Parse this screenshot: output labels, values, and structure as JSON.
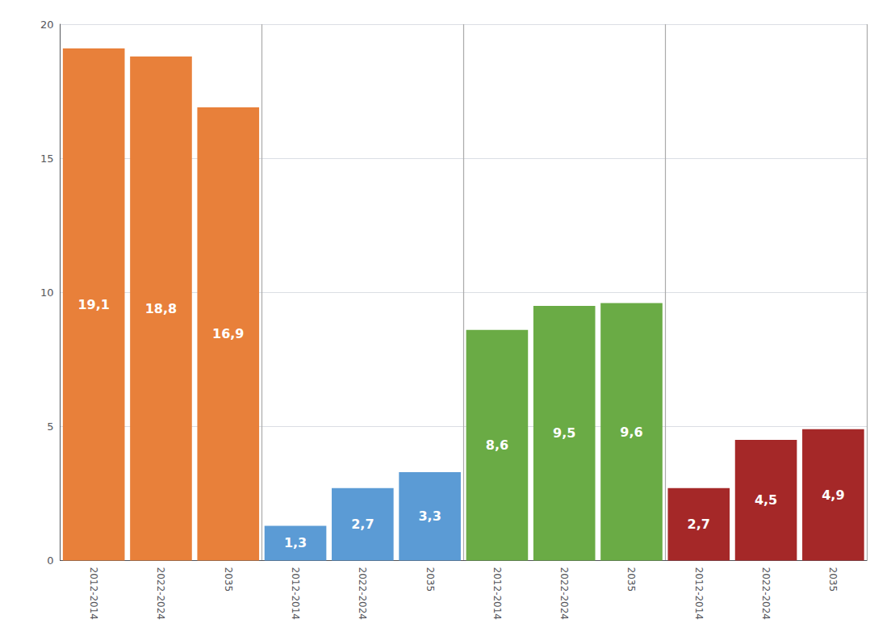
{
  "chart_data": {
    "type": "bar",
    "categories": [
      "2012-2014",
      "2022-2024",
      "2035",
      "2012-2014",
      "2022-2024",
      "2035",
      "2012-2014",
      "2022-2024",
      "2035",
      "2012-2014",
      "2022-2024",
      "2035"
    ],
    "values": [
      19.1,
      18.8,
      16.9,
      1.3,
      2.7,
      3.3,
      8.6,
      9.5,
      9.6,
      2.7,
      4.5,
      4.9
    ],
    "value_labels": [
      "19,1",
      "18,8",
      "16,9",
      "1,3",
      "2,7",
      "3,3",
      "8,6",
      "9,5",
      "9,6",
      "2,7",
      "4,5",
      "4,9"
    ],
    "colors": [
      "#E8803A",
      "#E8803A",
      "#E8803A",
      "#5B9BD5",
      "#5B9BD5",
      "#5B9BD5",
      "#6AAB45",
      "#6AAB45",
      "#6AAB45",
      "#A52828",
      "#A52828",
      "#A52828"
    ],
    "ylim": [
      0,
      20
    ],
    "yticks": [
      0,
      5,
      10,
      15,
      20
    ],
    "grid": true,
    "data_labels": true
  }
}
